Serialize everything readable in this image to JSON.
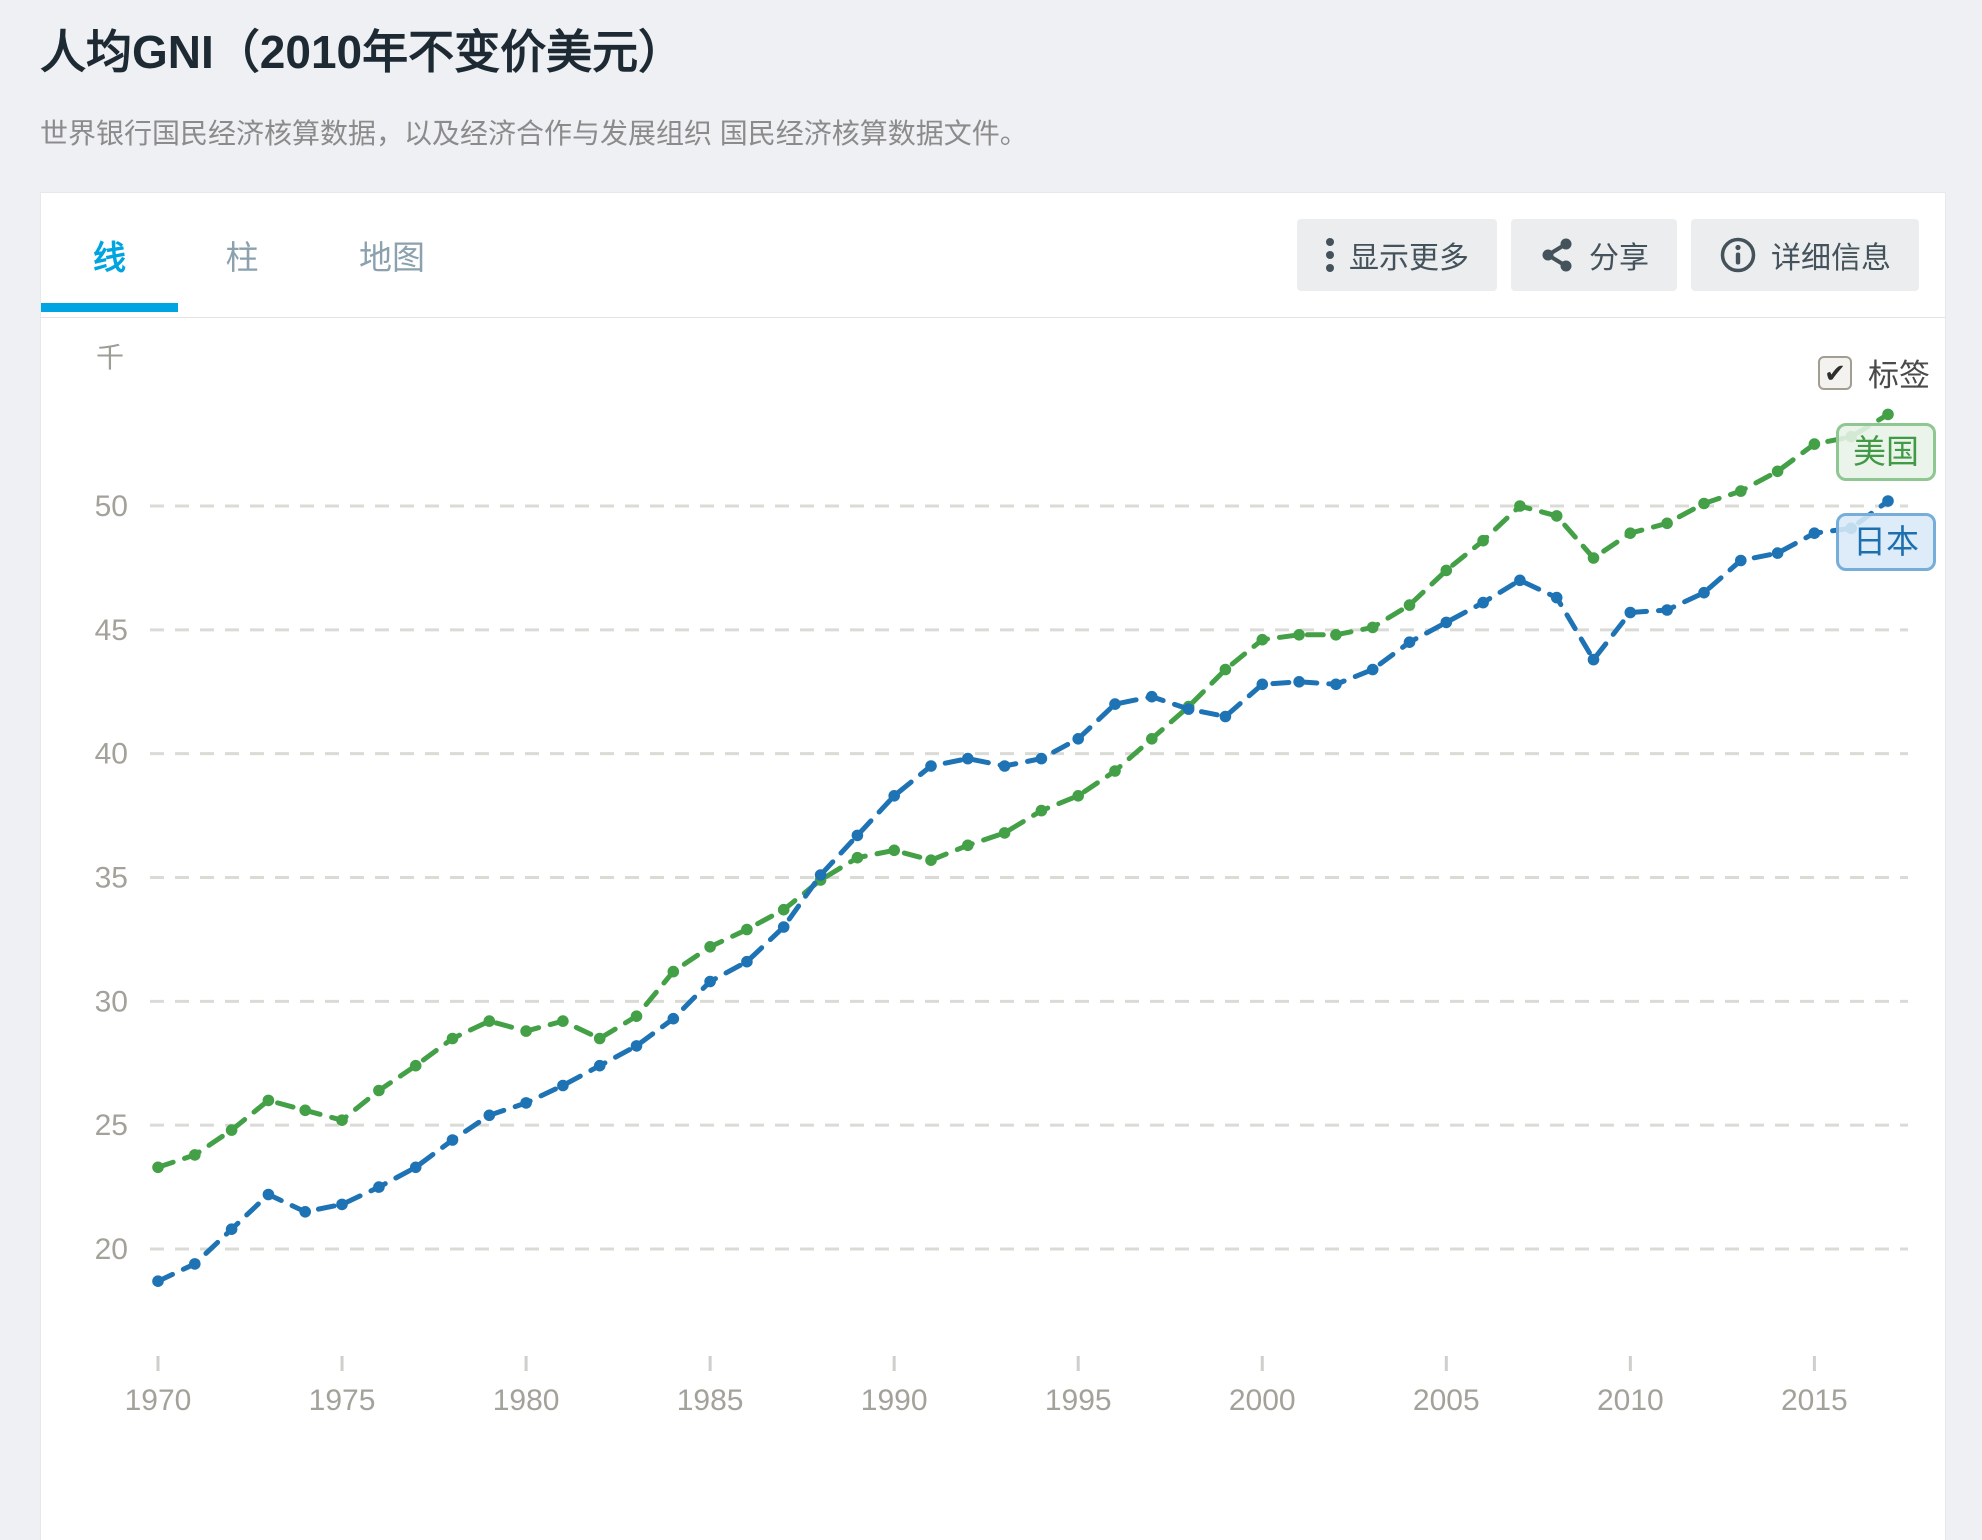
{
  "header": {
    "title": "人均GNI（2010年不变价美元）",
    "subtitle": "世界银行国民经济核算数据，以及经济合作与发展组织 国民经济核算数据文件。"
  },
  "tabs": [
    {
      "label": "线",
      "active": true
    },
    {
      "label": "柱",
      "active": false
    },
    {
      "label": "地图",
      "active": false
    }
  ],
  "toolbar": {
    "more_label": "显示更多",
    "share_label": "分享",
    "details_label": "详细信息"
  },
  "chart": {
    "unit_label": "千",
    "labels_toggle": {
      "checked": true,
      "label": "标签",
      "check_glyph": "✔"
    }
  },
  "chart_data": {
    "type": "line",
    "title": "人均GNI（2010年不变价美元）",
    "unit": "千",
    "x": [
      1970,
      1971,
      1972,
      1973,
      1974,
      1975,
      1976,
      1977,
      1978,
      1979,
      1980,
      1981,
      1982,
      1983,
      1984,
      1985,
      1986,
      1987,
      1988,
      1989,
      1990,
      1991,
      1992,
      1993,
      1994,
      1995,
      1996,
      1997,
      1998,
      1999,
      2000,
      2001,
      2002,
      2003,
      2004,
      2005,
      2006,
      2007,
      2008,
      2009,
      2010,
      2011,
      2012,
      2013,
      2014,
      2015,
      2016,
      2017
    ],
    "x_ticks": [
      1970,
      1975,
      1980,
      1985,
      1990,
      1995,
      2000,
      2005,
      2010,
      2015
    ],
    "y_ticks": [
      20,
      25,
      30,
      35,
      40,
      45,
      50
    ],
    "ylim": [
      17.4,
      54.6
    ],
    "grid": "horizontal dashed",
    "legend_position": "line-end labels",
    "series": [
      {
        "name": "美国",
        "color": "#43a047",
        "label_bg": "#e8f3e8",
        "label_border": "#8fc793",
        "values": [
          23.3,
          23.8,
          24.8,
          26.0,
          25.6,
          25.2,
          26.4,
          27.4,
          28.5,
          29.2,
          28.8,
          29.2,
          28.5,
          29.4,
          31.2,
          32.2,
          32.9,
          33.7,
          34.9,
          35.8,
          36.1,
          35.7,
          36.3,
          36.8,
          37.7,
          38.3,
          39.3,
          40.6,
          41.9,
          43.4,
          44.6,
          44.8,
          44.8,
          45.1,
          46.0,
          47.4,
          48.6,
          50.0,
          49.6,
          47.9,
          48.9,
          49.3,
          50.1,
          50.6,
          51.4,
          52.5,
          52.8,
          53.7
        ]
      },
      {
        "name": "日本",
        "color": "#1e73b4",
        "label_bg": "#d8e9f7",
        "label_border": "#77add9",
        "values": [
          18.7,
          19.4,
          20.8,
          22.2,
          21.5,
          21.8,
          22.5,
          23.3,
          24.4,
          25.4,
          25.9,
          26.6,
          27.4,
          28.2,
          29.3,
          30.8,
          31.6,
          33.0,
          35.1,
          36.7,
          38.3,
          39.5,
          39.8,
          39.5,
          39.8,
          40.6,
          42.0,
          42.3,
          41.8,
          41.5,
          42.8,
          42.9,
          42.8,
          43.4,
          44.5,
          45.3,
          46.1,
          47.0,
          46.3,
          43.8,
          45.7,
          45.8,
          46.5,
          47.8,
          48.1,
          48.9,
          49.1,
          50.2
        ]
      }
    ]
  }
}
